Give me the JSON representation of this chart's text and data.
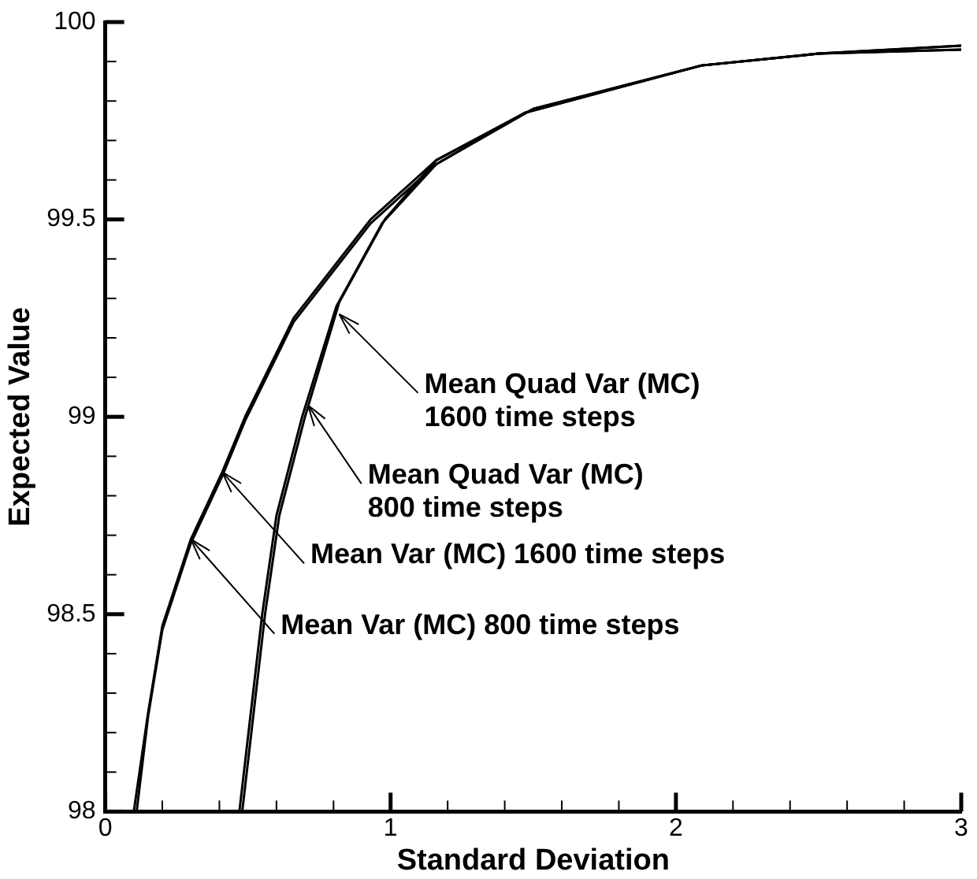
{
  "chart_data": {
    "type": "line",
    "xlabel": "Standard Deviation",
    "ylabel": "Expected Value",
    "xlim": [
      0,
      3
    ],
    "ylim": [
      98,
      100
    ],
    "xticks": [
      0,
      {
        "value": 0.2,
        "label": null
      },
      {
        "value": 0.4,
        "label": null
      },
      {
        "value": 0.6,
        "label": null
      },
      {
        "value": 0.8,
        "label": null
      },
      1,
      {
        "value": 1.2,
        "label": null
      },
      {
        "value": 1.4,
        "label": null
      },
      {
        "value": 1.6,
        "label": null
      },
      {
        "value": 1.8,
        "label": null
      },
      2,
      {
        "value": 2.2,
        "label": null
      },
      {
        "value": 2.4,
        "label": null
      },
      {
        "value": 2.6,
        "label": null
      },
      {
        "value": 2.8,
        "label": null
      },
      3
    ],
    "yticks": [
      98,
      {
        "value": 98.1,
        "label": null
      },
      {
        "value": 98.2,
        "label": null
      },
      {
        "value": 98.3,
        "label": null
      },
      {
        "value": 98.4,
        "label": null
      },
      98.5,
      {
        "value": 98.6,
        "label": null
      },
      {
        "value": 98.7,
        "label": null
      },
      {
        "value": 98.8,
        "label": null
      },
      {
        "value": 98.9,
        "label": null
      },
      99,
      {
        "value": 99.1,
        "label": null
      },
      {
        "value": 99.2,
        "label": null
      },
      {
        "value": 99.3,
        "label": null
      },
      {
        "value": 99.4,
        "label": null
      },
      99.5,
      {
        "value": 99.6,
        "label": null
      },
      {
        "value": 99.7,
        "label": null
      },
      {
        "value": 99.8,
        "label": null
      },
      {
        "value": 99.9,
        "label": null
      },
      100
    ],
    "grid": false,
    "legend": false,
    "marker": "none",
    "line_style": "solid",
    "series": [
      {
        "color": "#000000",
        "x": [
          0.1,
          0.15,
          0.2,
          0.3,
          0.41,
          0.49,
          0.66,
          0.93,
          1.16,
          1.5,
          2.09,
          2.5,
          3
        ],
        "values": [
          98,
          98.25,
          98.47,
          98.69,
          98.86,
          99,
          99.25,
          99.5,
          99.65,
          99.78,
          99.89,
          99.92,
          99.94
        ]
      },
      {
        "color": "#000000",
        "x": [
          0.11,
          0.15,
          0.2,
          0.3,
          0.41,
          0.49,
          0.66,
          0.93,
          1.16,
          1.5,
          2.09,
          2.5,
          3
        ],
        "values": [
          98,
          98.24,
          98.46,
          98.68,
          98.85,
          98.99,
          99.24,
          99.49,
          99.64,
          99.78,
          99.89,
          99.92,
          99.93
        ]
      },
      {
        "color": "#000000",
        "x": [
          0.48,
          0.56,
          0.61,
          0.7,
          0.82,
          0.98,
          1.16,
          1.47,
          2.09,
          2.5,
          3
        ],
        "values": [
          98,
          98.5,
          98.75,
          99,
          99.29,
          99.5,
          99.65,
          99.77,
          99.89,
          99.92,
          99.93
        ]
      },
      {
        "color": "#000000",
        "x": [
          0.47,
          0.55,
          0.6,
          0.69,
          0.81,
          0.97,
          1.16,
          1.47,
          2.09,
          2.5,
          3
        ],
        "values": [
          98,
          98.5,
          98.75,
          99,
          99.28,
          99.49,
          99.64,
          99.77,
          99.89,
          99.92,
          99.94
        ]
      }
    ],
    "annotations": [
      {
        "text": "Mean Quad Var (MC)\n1600 time steps",
        "x": 0.82,
        "y": 99.26
      },
      {
        "text": "Mean Quad Var (MC)\n800 time steps",
        "x": 0.71,
        "y": 99.03
      },
      {
        "text": "Mean Var (MC) 1600 time steps",
        "x": 0.41,
        "y": 98.86
      },
      {
        "text": "Mean Var (MC) 800 time steps",
        "x": 0.3,
        "y": 98.69
      }
    ]
  }
}
